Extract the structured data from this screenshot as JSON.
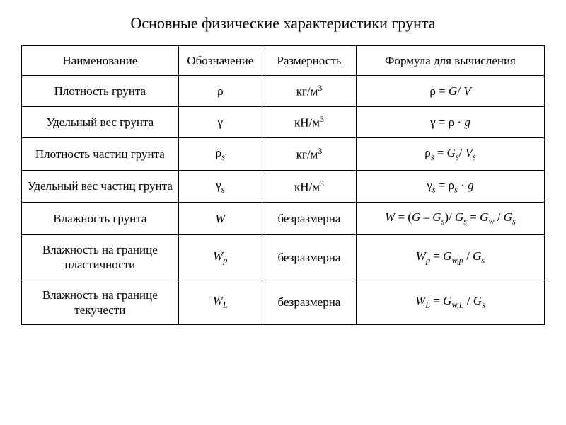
{
  "title": "Основные физические характеристики грунта",
  "table": {
    "border_color": "#000000",
    "background_color": "#ffffff",
    "text_color": "#000000",
    "font_family": "Times New Roman",
    "font_size_pt": 13,
    "column_widths_pct": [
      30,
      16,
      18,
      36
    ],
    "columns": [
      "Наименование",
      "Обозначение",
      "Размерность",
      "Формула для вычисления"
    ],
    "rows": [
      {
        "name": "Плотность грунта",
        "symbol_html": "ρ",
        "dimension_html": "кг/м<sup>3</sup>",
        "formula_html": "ρ = <span class=\"it\">G</span>/ <span class=\"it\">V</span>"
      },
      {
        "name": "Удельный вес грунта",
        "symbol_html": "γ",
        "dimension_html": "кН/м<sup>3</sup>",
        "formula_html": "γ = ρ · <span class=\"it\">g</span>"
      },
      {
        "name": "Плотность частиц грунта",
        "symbol_html": "ρ<span class=\"sub\">s</span>",
        "dimension_html": "кг/м<sup>3</sup>",
        "formula_html": "ρ<span class=\"sub\">s</span> = <span class=\"it\">G<span class=\"sub\">s</span></span>/ <span class=\"it\">V<span class=\"sub\">s</span></span>"
      },
      {
        "name": "Удельный вес частиц грунта",
        "symbol_html": "γ<span class=\"sub\">s</span>",
        "dimension_html": "кН/м<sup>3</sup>",
        "formula_html": "γ<span class=\"sub\">s</span> = ρ<span class=\"sub\">s</span> · <span class=\"it\">g</span>"
      },
      {
        "name": "Влажность грунта",
        "symbol_html": "<span class=\"it\">W</span>",
        "dimension_html": "безразмерна",
        "formula_html": "<span class=\"it\">W</span> = (<span class=\"it\">G</span> – <span class=\"it\">G<span class=\"sub\">s</span></span>)/ <span class=\"it\">G<span class=\"sub\">s</span></span> = <span class=\"it\">G<span class=\"sub\">w</span></span> / <span class=\"it\">G<span class=\"sub\">s</span></span>"
      },
      {
        "name": "Влажность на границе пластичности",
        "symbol_html": "<span class=\"it\">W<span class=\"sub\">p</span></span>",
        "dimension_html": "безразмерна",
        "formula_html": "<span class=\"it\">W<span class=\"sub\">p</span></span> = <span class=\"it\">G<span class=\"sub\">w,p</span></span> / <span class=\"it\">G<span class=\"sub\">s</span></span>"
      },
      {
        "name": "Влажность на границе текучести",
        "symbol_html": "<span class=\"it\">W<span class=\"sub\">L</span></span>",
        "dimension_html": "безразмерна",
        "formula_html": "<span class=\"it\">W<span class=\"sub\">L</span></span> = <span class=\"it\">G<span class=\"sub\">w,L</span></span> / <span class=\"it\">G<span class=\"sub\">s</span></span>"
      }
    ]
  }
}
